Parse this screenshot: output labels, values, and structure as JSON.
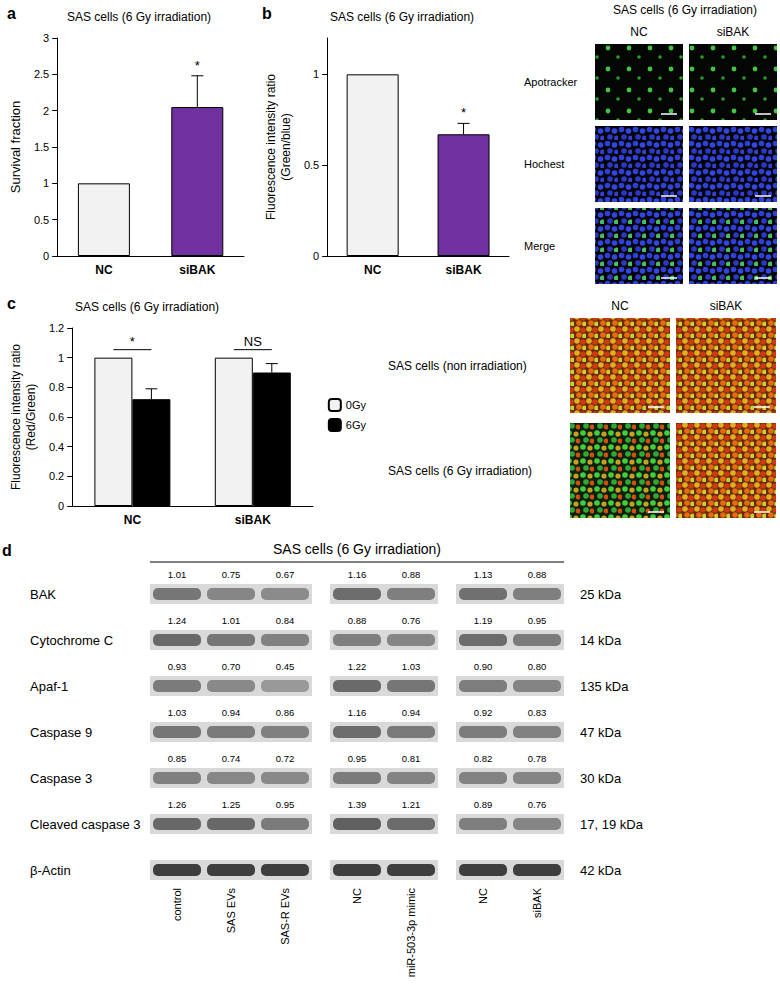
{
  "chart_data": [
    {
      "label": "a",
      "type": "bar",
      "title": "SAS cells (6 Gy irradiation)",
      "y_label": "Survival fraction",
      "categories": [
        "NC",
        "siBAK"
      ],
      "values": [
        1,
        2.05
      ],
      "errors": [
        null,
        0.43
      ],
      "colors": [
        "#f2f2f2",
        "#7030a0"
      ],
      "ylim": [
        0,
        3
      ],
      "yticks": [
        0,
        0.5,
        1,
        1.5,
        2,
        2.5,
        3
      ],
      "grid": false,
      "annotations": [
        {
          "text": "*",
          "category": "siBAK"
        }
      ]
    },
    {
      "label": "b",
      "type": "bar",
      "title": "SAS cells (6 Gy irradiation)",
      "y_label": "Fluorescence intensity ratio\n(Green/blue)",
      "categories": [
        "NC",
        "siBAK"
      ],
      "values": [
        1,
        0.67
      ],
      "errors": [
        null,
        0.06
      ],
      "colors": [
        "#f2f2f2",
        "#7030a0"
      ],
      "ylim": [
        0,
        1.2
      ],
      "yticks": [
        0,
        0.5,
        1
      ],
      "grid": false,
      "annotations": [
        {
          "text": "*",
          "category": "siBAK"
        }
      ]
    },
    {
      "label": "c",
      "type": "bar",
      "title": "SAS cells (6 Gy irradiation)",
      "y_label": "Fluorescence intensity ratio\n(Red/Green)",
      "categories": [
        "NC",
        "siBAK"
      ],
      "series": [
        {
          "name": "0Gy",
          "color": "#f2f2f2",
          "values": [
            1,
            1
          ],
          "errors": [
            null,
            null
          ]
        },
        {
          "name": "6Gy",
          "color": "#000000",
          "values": [
            0.72,
            0.9
          ],
          "errors": [
            0.07,
            0.06
          ]
        }
      ],
      "ylim": [
        0,
        1.2
      ],
      "yticks": [
        0,
        0.2,
        0.4,
        0.6,
        0.8,
        1,
        1.2
      ],
      "grid": false,
      "legend": "right",
      "annotations": [
        {
          "text": "*",
          "category": "NC"
        },
        {
          "text": "NS",
          "category": "siBAK"
        }
      ]
    }
  ],
  "micrographs": [
    {
      "panel": "b",
      "title": "SAS cells (6 Gy irradiation)",
      "columns": [
        "NC",
        "siBAK"
      ],
      "rows": [
        "Apotracker",
        "Hochest",
        "Merge"
      ]
    },
    {
      "panel": "c",
      "columns": [
        "NC",
        "siBAK"
      ],
      "rows": [
        "SAS cells (non irradiation)",
        "SAS cells (6 Gy irradiation)"
      ]
    }
  ],
  "blot": {
    "label": "d",
    "title": "SAS cells (6 Gy irradiation)",
    "lane_groups": [
      [
        "control",
        "SAS EVs",
        "SAS-R EVs"
      ],
      [
        "NC",
        "miR-503-3p mimic"
      ],
      [
        "NC",
        "siBAK"
      ]
    ],
    "rows": [
      {
        "protein": "BAK",
        "mw": "25 kDa",
        "values": [
          [
            "1.01",
            "0.75",
            "0.67"
          ],
          [
            "1.16",
            "0.88"
          ],
          [
            "1.13",
            "0.88"
          ]
        ]
      },
      {
        "protein": "Cytochrome C",
        "mw": "14 kDa",
        "values": [
          [
            "1.24",
            "1.01",
            "0.84"
          ],
          [
            "0.88",
            "0.76"
          ],
          [
            "1.19",
            "0.95"
          ]
        ]
      },
      {
        "protein": "Apaf-1",
        "mw": "135 kDa",
        "values": [
          [
            "0.93",
            "0.70",
            "0.45"
          ],
          [
            "1.22",
            "1.03"
          ],
          [
            "0.90",
            "0.80"
          ]
        ]
      },
      {
        "protein": "Caspase 9",
        "mw": "47 kDa",
        "values": [
          [
            "1.03",
            "0.94",
            "0.86"
          ],
          [
            "1.16",
            "0.94"
          ],
          [
            "0.92",
            "0.83"
          ]
        ]
      },
      {
        "protein": "Caspase 3",
        "mw": "30 kDa",
        "values": [
          [
            "0.85",
            "0.74",
            "0.72"
          ],
          [
            "0.95",
            "0.81"
          ],
          [
            "0.82",
            "0.78"
          ]
        ]
      },
      {
        "protein": "Cleaved caspase 3",
        "mw": "17, 19 kDa",
        "values": [
          [
            "1.26",
            "1.25",
            "0.95"
          ],
          [
            "1.39",
            "1.21"
          ],
          [
            "0.89",
            "0.76"
          ]
        ]
      },
      {
        "protein": "β-Actin",
        "mw": "42 kDa",
        "values": null
      }
    ]
  }
}
